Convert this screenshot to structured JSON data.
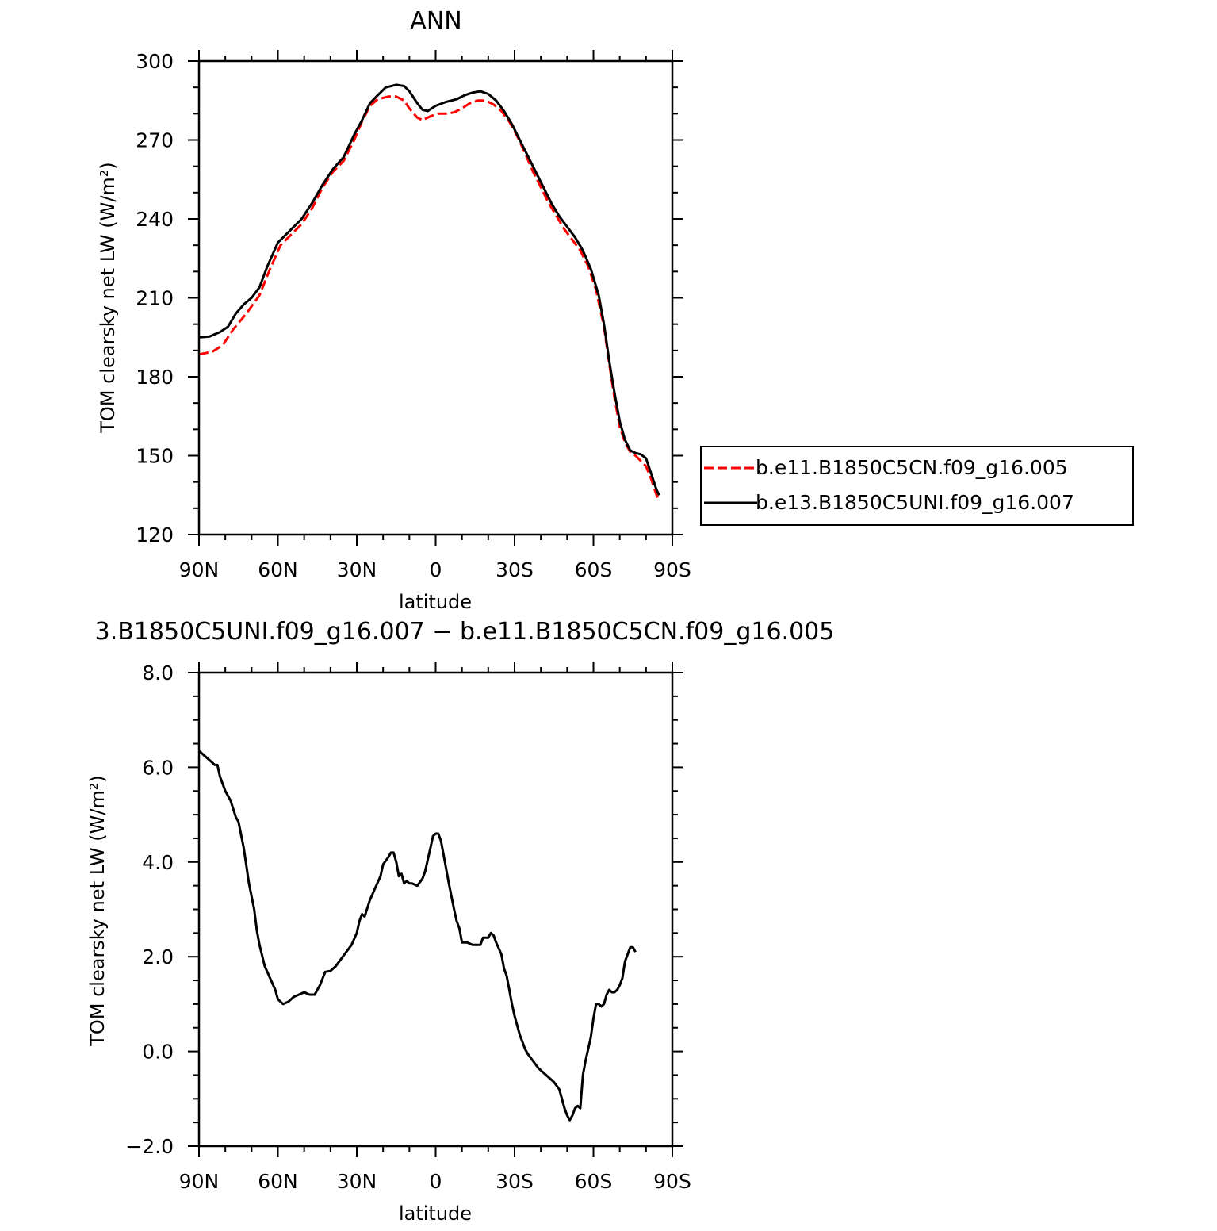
{
  "chart_data": [
    {
      "type": "line",
      "title": "ANN",
      "xlabel": "latitude",
      "ylabel": "TOM clearsky net LW (W/m²)",
      "ylim": [
        120,
        300
      ],
      "xlim": [
        -90,
        90
      ],
      "x_direction": "90N on left to 90S on right (x = degrees south, negative = north)",
      "xticks": [
        {
          "v": -90,
          "label": "90N"
        },
        {
          "v": -60,
          "label": "60N"
        },
        {
          "v": -30,
          "label": "30N"
        },
        {
          "v": 0,
          "label": "0"
        },
        {
          "v": 30,
          "label": "30S"
        },
        {
          "v": 60,
          "label": "60S"
        },
        {
          "v": 90,
          "label": "90S"
        }
      ],
      "yticks": [
        300,
        270,
        240,
        210,
        180,
        150,
        120
      ],
      "legend_position": "right",
      "series": [
        {
          "name": "b.e11.B1850C5CN.f09_g16.005",
          "color": "#ff0000",
          "style": "dashed",
          "points": [
            [
              -90,
              188.5
            ],
            [
              -85,
              189.5
            ],
            [
              -81,
              192
            ],
            [
              -77,
              198
            ],
            [
              -72,
              204
            ],
            [
              -67,
              211
            ],
            [
              -63,
              221
            ],
            [
              -59,
              230
            ],
            [
              -55,
              234
            ],
            [
              -51,
              238
            ],
            [
              -47,
              244
            ],
            [
              -43,
              252
            ],
            [
              -39,
              258
            ],
            [
              -35,
              262
            ],
            [
              -31,
              270
            ],
            [
              -28,
              277
            ],
            [
              -25,
              283
            ],
            [
              -22,
              285.5
            ],
            [
              -18,
              286.5
            ],
            [
              -15,
              286.5
            ],
            [
              -12,
              285
            ],
            [
              -10,
              282
            ],
            [
              -7,
              278.5
            ],
            [
              -5,
              277.5
            ],
            [
              -2,
              279
            ],
            [
              1,
              280
            ],
            [
              4,
              280
            ],
            [
              7,
              280.5
            ],
            [
              10,
              282
            ],
            [
              13,
              284
            ],
            [
              16,
              285
            ],
            [
              19,
              285
            ],
            [
              22,
              283.5
            ],
            [
              25,
              281
            ],
            [
              28,
              277
            ],
            [
              31,
              271.5
            ],
            [
              34,
              265
            ],
            [
              37,
              258
            ],
            [
              40,
              252
            ],
            [
              43,
              246
            ],
            [
              46,
              241
            ],
            [
              49,
              236
            ],
            [
              52,
              232
            ],
            [
              55,
              228
            ],
            [
              58,
              222
            ],
            [
              61,
              213
            ],
            [
              64,
              199
            ],
            [
              66,
              185
            ],
            [
              68,
              172
            ],
            [
              70,
              161
            ],
            [
              72,
              155
            ],
            [
              74,
              151.5
            ],
            [
              76,
              150
            ],
            [
              78,
              148
            ],
            [
              80,
              146
            ],
            [
              82,
              141
            ],
            [
              84,
              135
            ],
            [
              85,
              133
            ]
          ]
        },
        {
          "name": "b.e13.B1850C5UNI.f09_g16.007",
          "color": "#000000",
          "style": "solid",
          "points": [
            [
              -90,
              195
            ],
            [
              -86,
              195.3
            ],
            [
              -82,
              197
            ],
            [
              -79,
              199
            ],
            [
              -76,
              204
            ],
            [
              -73,
              207.5
            ],
            [
              -70,
              210
            ],
            [
              -67,
              214
            ],
            [
              -64,
              222
            ],
            [
              -60,
              231
            ],
            [
              -55,
              236
            ],
            [
              -51,
              240
            ],
            [
              -47,
              246
            ],
            [
              -43,
              253
            ],
            [
              -39,
              259
            ],
            [
              -35,
              263.5
            ],
            [
              -31,
              272
            ],
            [
              -28,
              277.5
            ],
            [
              -25,
              284
            ],
            [
              -22,
              287
            ],
            [
              -19,
              290
            ],
            [
              -15,
              291
            ],
            [
              -12,
              290.5
            ],
            [
              -10,
              288.5
            ],
            [
              -7,
              284
            ],
            [
              -5,
              281.5
            ],
            [
              -3,
              281
            ],
            [
              0,
              283
            ],
            [
              4,
              284.5
            ],
            [
              8,
              285.5
            ],
            [
              11,
              287
            ],
            [
              14,
              288
            ],
            [
              17,
              288.5
            ],
            [
              20,
              287.5
            ],
            [
              23,
              285
            ],
            [
              26,
              281
            ],
            [
              29,
              276
            ],
            [
              32,
              270
            ],
            [
              35,
              264
            ],
            [
              38,
              258
            ],
            [
              41,
              252
            ],
            [
              44,
              246
            ],
            [
              47,
              241
            ],
            [
              50,
              237
            ],
            [
              53,
              233
            ],
            [
              56,
              228
            ],
            [
              59,
              221
            ],
            [
              62,
              211
            ],
            [
              64,
              200
            ],
            [
              66,
              186
            ],
            [
              68,
              174
            ],
            [
              70,
              163
            ],
            [
              72,
              156
            ],
            [
              74,
              152
            ],
            [
              76,
              151
            ],
            [
              78,
              150.5
            ],
            [
              80,
              149
            ],
            [
              82,
              143
            ],
            [
              84,
              137
            ],
            [
              85,
              135
            ]
          ]
        }
      ]
    },
    {
      "type": "line",
      "title": "3.B1850C5UNI.f09_g16.007 − b.e11.B1850C5CN.f09_g16.005",
      "xlabel": "latitude",
      "ylabel": "TOM clearsky net LW (W/m²)",
      "ylim": [
        -2.0,
        8.0
      ],
      "xlim": [
        -90,
        90
      ],
      "xticks": [
        {
          "v": -90,
          "label": "90N"
        },
        {
          "v": -60,
          "label": "60N"
        },
        {
          "v": -30,
          "label": "30N"
        },
        {
          "v": 0,
          "label": "0"
        },
        {
          "v": 30,
          "label": "30S"
        },
        {
          "v": 60,
          "label": "60S"
        },
        {
          "v": 90,
          "label": "90S"
        }
      ],
      "yticks": [
        "8.0",
        "6.0",
        "4.0",
        "2.0",
        "0.0",
        "−2.0"
      ],
      "series": [
        {
          "color": "#000000",
          "style": "solid",
          "points": [
            [
              -90,
              6.35
            ],
            [
              -88,
              6.25
            ],
            [
              -86,
              6.15
            ],
            [
              -84,
              6.05
            ],
            [
              -83,
              6.05
            ],
            [
              -82,
              5.8
            ],
            [
              -80,
              5.5
            ],
            [
              -78,
              5.3
            ],
            [
              -76,
              4.95
            ],
            [
              -75,
              4.85
            ],
            [
              -73,
              4.3
            ],
            [
              -71,
              3.55
            ],
            [
              -69,
              3.0
            ],
            [
              -68,
              2.55
            ],
            [
              -67,
              2.25
            ],
            [
              -65,
              1.8
            ],
            [
              -63,
              1.55
            ],
            [
              -61,
              1.3
            ],
            [
              -60,
              1.1
            ],
            [
              -58,
              1.0
            ],
            [
              -56,
              1.05
            ],
            [
              -54,
              1.15
            ],
            [
              -52,
              1.2
            ],
            [
              -50,
              1.25
            ],
            [
              -48,
              1.2
            ],
            [
              -46,
              1.2
            ],
            [
              -44,
              1.4
            ],
            [
              -42,
              1.68
            ],
            [
              -40,
              1.7
            ],
            [
              -38,
              1.8
            ],
            [
              -36,
              1.95
            ],
            [
              -34,
              2.1
            ],
            [
              -32,
              2.25
            ],
            [
              -30,
              2.5
            ],
            [
              -29,
              2.75
            ],
            [
              -28,
              2.9
            ],
            [
              -27,
              2.85
            ],
            [
              -25,
              3.2
            ],
            [
              -23,
              3.45
            ],
            [
              -21,
              3.7
            ],
            [
              -20,
              3.95
            ],
            [
              -18,
              4.1
            ],
            [
              -17,
              4.2
            ],
            [
              -16,
              4.2
            ],
            [
              -15,
              4.0
            ],
            [
              -14,
              3.7
            ],
            [
              -13,
              3.75
            ],
            [
              -12,
              3.55
            ],
            [
              -11,
              3.6
            ],
            [
              -10,
              3.55
            ],
            [
              -9,
              3.55
            ],
            [
              -7,
              3.5
            ],
            [
              -5,
              3.65
            ],
            [
              -4,
              3.8
            ],
            [
              -2,
              4.3
            ],
            [
              -1,
              4.55
            ],
            [
              0,
              4.6
            ],
            [
              1,
              4.6
            ],
            [
              2,
              4.45
            ],
            [
              3,
              4.15
            ],
            [
              5,
              3.55
            ],
            [
              7,
              3.0
            ],
            [
              8,
              2.75
            ],
            [
              9,
              2.6
            ],
            [
              10,
              2.3
            ],
            [
              12,
              2.3
            ],
            [
              14,
              2.25
            ],
            [
              16,
              2.25
            ],
            [
              17,
              2.25
            ],
            [
              18,
              2.4
            ],
            [
              20,
              2.4
            ],
            [
              21,
              2.5
            ],
            [
              22,
              2.45
            ],
            [
              23,
              2.3
            ],
            [
              25,
              2.05
            ],
            [
              26,
              1.75
            ],
            [
              27,
              1.6
            ],
            [
              28,
              1.3
            ],
            [
              29,
              1.0
            ],
            [
              30,
              0.75
            ],
            [
              32,
              0.35
            ],
            [
              34,
              0.05
            ],
            [
              35,
              -0.05
            ],
            [
              37,
              -0.2
            ],
            [
              39,
              -0.35
            ],
            [
              41,
              -0.45
            ],
            [
              43,
              -0.55
            ],
            [
              45,
              -0.65
            ],
            [
              47,
              -0.8
            ],
            [
              48,
              -1.0
            ],
            [
              49,
              -1.2
            ],
            [
              50,
              -1.35
            ],
            [
              51,
              -1.45
            ],
            [
              52,
              -1.35
            ],
            [
              53,
              -1.2
            ],
            [
              54,
              -1.15
            ],
            [
              55,
              -1.2
            ],
            [
              56,
              -0.5
            ],
            [
              57,
              -0.2
            ],
            [
              59,
              0.3
            ],
            [
              60,
              0.7
            ],
            [
              61,
              1.0
            ],
            [
              62,
              1.0
            ],
            [
              63,
              0.95
            ],
            [
              64,
              1.0
            ],
            [
              65,
              1.2
            ],
            [
              66,
              1.3
            ],
            [
              67,
              1.25
            ],
            [
              68,
              1.25
            ],
            [
              69,
              1.3
            ],
            [
              70,
              1.4
            ],
            [
              71,
              1.55
            ],
            [
              72,
              1.9
            ],
            [
              73,
              2.05
            ],
            [
              74,
              2.2
            ],
            [
              75,
              2.2
            ],
            [
              76,
              2.1
            ]
          ]
        }
      ]
    }
  ]
}
